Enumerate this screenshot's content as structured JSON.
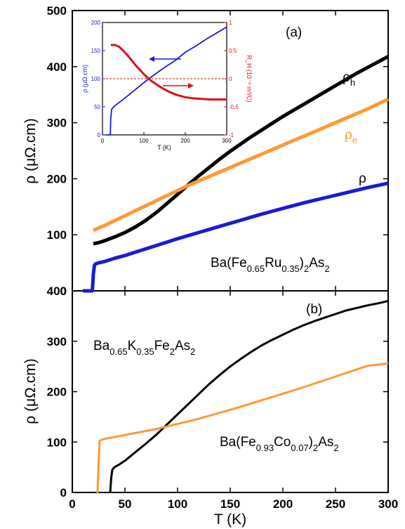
{
  "figure": {
    "xlabel": "T (K)",
    "ylabel": "ρ (μΩ.cm)"
  },
  "chart_data": [
    {
      "panel": "(a)",
      "type": "line",
      "xlim": [
        0,
        300
      ],
      "ylim": [
        0,
        500
      ],
      "xticks": [
        0,
        50,
        100,
        150,
        200,
        250,
        300
      ],
      "yticks": [
        0,
        100,
        200,
        300,
        400,
        500
      ],
      "ytick_labels": [
        "0",
        "100",
        "200",
        "300",
        "400",
        "500"
      ],
      "ylabel": "ρ (μΩ.cm)",
      "annotation": {
        "main": "Ba(Fe",
        "s1": "0.65",
        "m1": "Ru",
        "s2": "0.35",
        "m2": ")",
        "s3": "2",
        "m3": "As",
        "s4": "2"
      },
      "series": [
        {
          "name": "ρh",
          "label_main": "ρ",
          "label_sub": "h",
          "color": "#000000",
          "x": [
            20,
            25,
            30,
            40,
            50,
            60,
            70,
            80,
            90,
            100,
            110,
            120,
            130,
            140,
            150,
            160,
            170,
            180,
            190,
            200,
            210,
            220,
            230,
            240,
            250,
            260,
            270,
            280,
            290,
            300
          ],
          "y": [
            84,
            86,
            89,
            96,
            104,
            114,
            126,
            140,
            156,
            172,
            189,
            205,
            220,
            235,
            249,
            262,
            275,
            287,
            299,
            311,
            322,
            333,
            344,
            355,
            366,
            377,
            388,
            398,
            408,
            418
          ]
        },
        {
          "name": "ρe",
          "label_main": "ρ",
          "label_sub": "e",
          "color": "#FF9933",
          "x": [
            20,
            25,
            30,
            40,
            50,
            60,
            70,
            80,
            90,
            100,
            110,
            120,
            130,
            140,
            150,
            160,
            170,
            180,
            190,
            200,
            210,
            220,
            230,
            240,
            250,
            260,
            270,
            280,
            290,
            300
          ],
          "y": [
            108,
            112,
            116,
            125,
            134,
            143,
            152,
            161,
            170,
            179,
            188,
            196,
            204,
            212,
            220,
            228,
            236,
            244,
            252,
            260,
            268,
            276,
            284,
            292,
            300,
            308,
            316,
            324,
            333,
            342
          ]
        },
        {
          "name": "ρ",
          "label_main": "ρ",
          "label_sub": "",
          "color": "#1A1AD6",
          "x": [
            10,
            19,
            20,
            21,
            22,
            25,
            30,
            40,
            50,
            60,
            70,
            80,
            90,
            100,
            120,
            140,
            160,
            180,
            200,
            220,
            240,
            260,
            280,
            300
          ],
          "y": [
            0,
            0,
            30,
            45,
            48,
            50,
            52,
            58,
            63,
            69,
            75,
            81,
            87,
            93,
            104,
            115,
            126,
            137,
            147,
            157,
            166,
            175,
            184,
            192
          ]
        }
      ],
      "inset": {
        "xlabel": "T (K)",
        "ylabel_left": "ρ (μΩ cm)",
        "ylabel_right": "R_H (10⁻⁹ m³/C)",
        "xlim": [
          0,
          300
        ],
        "ylim_left": [
          0,
          200
        ],
        "ylim_right": [
          -1,
          1
        ],
        "xticks": [
          0,
          100,
          200,
          300
        ],
        "yticks_left": [
          0,
          50,
          100,
          150,
          200
        ],
        "yticks_right": [
          -1,
          -0.5,
          0,
          0.5,
          1
        ],
        "ytick_labels_right": [
          "-1",
          "-0.5",
          "0",
          "0.5",
          "1"
        ],
        "series": [
          {
            "name": "ρ",
            "axis": "left",
            "color": "#1A1AD6",
            "x": [
              10,
              19,
              20,
              22,
              25,
              30,
              50,
              75,
              100,
              125,
              150,
              175,
              200,
              225,
              250,
              275,
              300
            ],
            "y": [
              0,
              0,
              30,
              45,
              48,
              52,
              63,
              78,
              93,
              107,
              120,
              132,
              147,
              158,
              170,
              181,
              192
            ]
          },
          {
            "name": "R_H",
            "axis": "right",
            "color": "#DD1111",
            "x": [
              20,
              30,
              40,
              50,
              60,
              70,
              80,
              90,
              100,
              110,
              120,
              130,
              140,
              150,
              160,
              170,
              180,
              190,
              200,
              210,
              220,
              240,
              260,
              280,
              300
            ],
            "y": [
              0.6,
              0.6,
              0.57,
              0.5,
              0.42,
              0.33,
              0.24,
              0.16,
              0.08,
              0.01,
              -0.05,
              -0.1,
              -0.15,
              -0.19,
              -0.23,
              -0.26,
              -0.29,
              -0.31,
              -0.33,
              -0.34,
              -0.35,
              -0.36,
              -0.37,
              -0.37,
              -0.37
            ]
          }
        ]
      }
    },
    {
      "panel": "(b)",
      "type": "line",
      "xlim": [
        0,
        300
      ],
      "ylim": [
        0,
        400
      ],
      "xticks": [
        0,
        50,
        100,
        150,
        200,
        250,
        300
      ],
      "yticks": [
        0,
        100,
        200,
        300,
        400
      ],
      "ytick_labels": [
        "0",
        "100",
        "200",
        "300",
        "400"
      ],
      "xtick_labels": [
        "0",
        "50",
        "100",
        "150",
        "200",
        "250",
        "300"
      ],
      "xlabel": "T (K)",
      "ylabel": "ρ (μΩ.cm)",
      "series": [
        {
          "name": "Ba0.65K0.35Fe2As2",
          "color": "#000000",
          "label": {
            "m0": "Ba",
            "s1": "0.65",
            "m1": "K",
            "s2": "0.35",
            "m2": "Fe",
            "s3": "2",
            "m3": "As",
            "s4": "2"
          },
          "x": [
            36,
            37,
            38,
            40,
            45,
            50,
            60,
            70,
            80,
            90,
            100,
            110,
            120,
            130,
            140,
            150,
            160,
            170,
            180,
            190,
            200,
            210,
            220,
            230,
            240,
            250,
            260,
            270,
            280,
            290,
            300
          ],
          "y": [
            0,
            30,
            45,
            50,
            56,
            63,
            80,
            97,
            115,
            135,
            155,
            175,
            195,
            215,
            233,
            250,
            265,
            279,
            292,
            303,
            313,
            323,
            332,
            340,
            347,
            354,
            361,
            366,
            371,
            375,
            380
          ]
        },
        {
          "name": "Ba(Fe0.93Co0.07)2As2",
          "color": "#FF9933",
          "label": {
            "m0": "Ba(Fe",
            "s1": "0.93",
            "m1": "Co",
            "s2": "0.07",
            "m2": ")",
            "s3": "2",
            "m3": "As",
            "s4": "2"
          },
          "x": [
            23,
            24,
            25,
            26,
            30,
            40,
            50,
            60,
            70,
            80,
            90,
            100,
            120,
            140,
            160,
            180,
            200,
            220,
            240,
            260,
            280,
            300
          ],
          "y": [
            0,
            0,
            60,
            103,
            106,
            110,
            114,
            118,
            122,
            126,
            131,
            136,
            146,
            158,
            170,
            183,
            196,
            209,
            223,
            237,
            251,
            256
          ]
        }
      ]
    }
  ]
}
